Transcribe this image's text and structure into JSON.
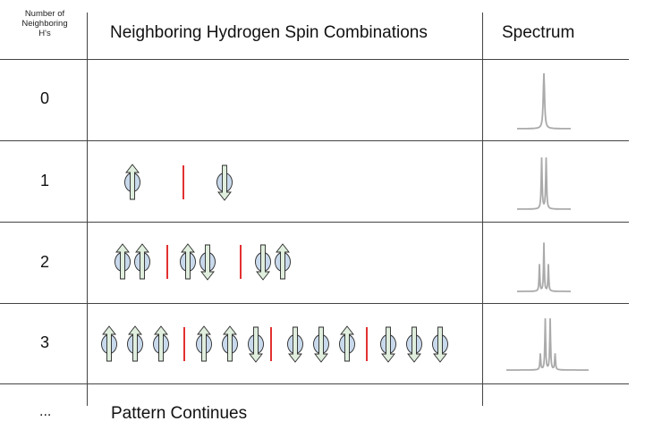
{
  "header": {
    "neighbors_line1": "Number of",
    "neighbors_line2": "Neighboring",
    "neighbors_line3": "H's",
    "combinations": "Neighboring Hydrogen Spin Combinations",
    "spectrum": "Spectrum"
  },
  "rows": [
    {
      "count": "0",
      "groups": [],
      "peaks": 1
    },
    {
      "count": "1",
      "groups": [
        [
          "up"
        ],
        [
          "down"
        ]
      ],
      "peaks": 2
    },
    {
      "count": "2",
      "groups": [
        [
          "up",
          "up"
        ],
        [
          "up",
          "down",
          "down",
          "up"
        ]
      ],
      "peaks": 3
    },
    {
      "count": "3",
      "groups": [
        [
          "up",
          "up",
          "up"
        ],
        [
          "up",
          "up",
          "down"
        ],
        [
          "down",
          "down",
          "up"
        ],
        [
          "down",
          "down",
          "down"
        ]
      ],
      "peaks": 4
    }
  ],
  "footer": {
    "ellipsis": "...",
    "text": "Pattern Continues"
  },
  "colors": {
    "arrow_fill": "#dfeedd",
    "nucleus_fill": "#c9d9ec",
    "divider": "#e23030",
    "spectrum": "#aaaaaa"
  }
}
